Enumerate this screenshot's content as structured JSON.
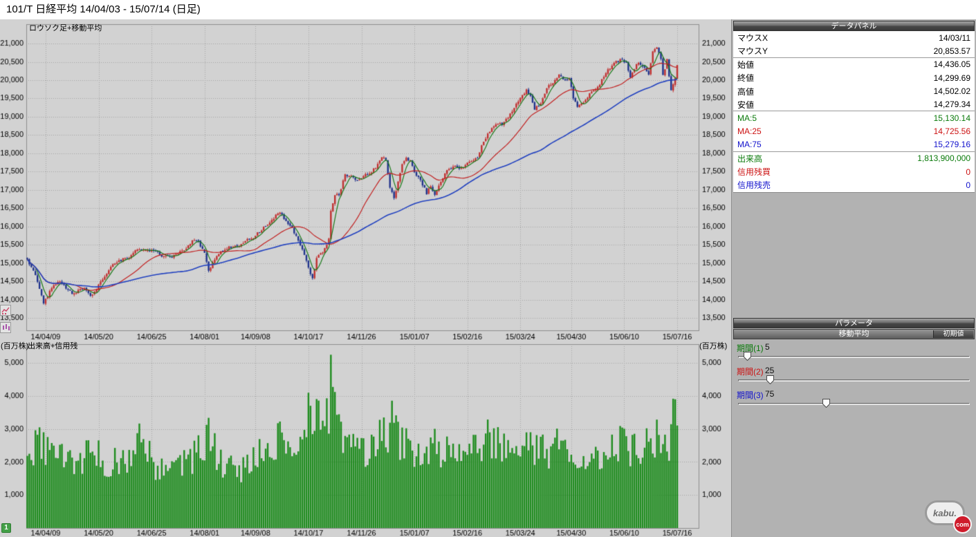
{
  "title_bar": {
    "text": "101/T 日経平均  14/04/03 - 15/07/14 (日足)"
  },
  "chart_labels": {
    "price_pane": "ロウソク足+移動平均",
    "volume_pane": "出来高+信用残",
    "volume_unit": "(百万株)"
  },
  "chart_data": {
    "type": "candlestick+volume",
    "title": "101/T 日経平均 (日足)",
    "date_range": [
      "14/04/03",
      "15/07/14"
    ],
    "x_tick_labels": [
      "14/04/09",
      "14/05/20",
      "14/06/25",
      "14/08/01",
      "14/09/08",
      "14/10/17",
      "14/11/26",
      "15/01/07",
      "15/02/16",
      "15/03/24",
      "15/04/30",
      "15/06/10",
      "15/07/16"
    ],
    "price_axis": {
      "min": 13500,
      "max": 21000,
      "step": 500
    },
    "volume_axis": {
      "min": 0,
      "max": 5000,
      "step": 1000,
      "unit": "百万株"
    },
    "days": 320,
    "close_anchors": [
      [
        0,
        15080
      ],
      [
        2,
        14870
      ],
      [
        4,
        14670
      ],
      [
        6,
        14310
      ],
      [
        8,
        13920
      ],
      [
        10,
        14100
      ],
      [
        13,
        14420
      ],
      [
        16,
        14510
      ],
      [
        19,
        14330
      ],
      [
        22,
        14150
      ],
      [
        25,
        14230
      ],
      [
        28,
        14340
      ],
      [
        31,
        14090
      ],
      [
        34,
        14310
      ],
      [
        38,
        14650
      ],
      [
        42,
        14930
      ],
      [
        46,
        15080
      ],
      [
        50,
        15160
      ],
      [
        54,
        15360
      ],
      [
        58,
        15370
      ],
      [
        62,
        15330
      ],
      [
        66,
        15210
      ],
      [
        70,
        15160
      ],
      [
        74,
        15240
      ],
      [
        78,
        15420
      ],
      [
        81,
        15620
      ],
      [
        84,
        15590
      ],
      [
        87,
        15280
      ],
      [
        89,
        14790
      ],
      [
        92,
        15110
      ],
      [
        95,
        15320
      ],
      [
        99,
        15430
      ],
      [
        103,
        15460
      ],
      [
        107,
        15590
      ],
      [
        111,
        15710
      ],
      [
        115,
        15920
      ],
      [
        119,
        16080
      ],
      [
        122,
        16320
      ],
      [
        124,
        16370
      ],
      [
        127,
        16170
      ],
      [
        130,
        15960
      ],
      [
        133,
        15640
      ],
      [
        136,
        15260
      ],
      [
        138,
        14910
      ],
      [
        140,
        14550
      ],
      [
        142,
        15130
      ],
      [
        145,
        15290
      ],
      [
        147,
        15530
      ],
      [
        148,
        15660
      ],
      [
        149,
        16420
      ],
      [
        151,
        16860
      ],
      [
        153,
        16890
      ],
      [
        156,
        17390
      ],
      [
        159,
        17370
      ],
      [
        162,
        17260
      ],
      [
        165,
        17380
      ],
      [
        168,
        17460
      ],
      [
        171,
        17600
      ],
      [
        174,
        17920
      ],
      [
        176,
        17840
      ],
      [
        178,
        17100
      ],
      [
        180,
        16760
      ],
      [
        182,
        17220
      ],
      [
        184,
        17680
      ],
      [
        186,
        17850
      ],
      [
        188,
        17810
      ],
      [
        190,
        17450
      ],
      [
        193,
        17280
      ],
      [
        196,
        16900
      ],
      [
        198,
        17110
      ],
      [
        200,
        16870
      ],
      [
        203,
        17230
      ],
      [
        206,
        17510
      ],
      [
        209,
        17650
      ],
      [
        212,
        17560
      ],
      [
        215,
        17680
      ],
      [
        218,
        17790
      ],
      [
        221,
        17910
      ],
      [
        224,
        18330
      ],
      [
        227,
        18600
      ],
      [
        230,
        18820
      ],
      [
        233,
        18780
      ],
      [
        236,
        18970
      ],
      [
        239,
        19250
      ],
      [
        242,
        19480
      ],
      [
        245,
        19750
      ],
      [
        247,
        19560
      ],
      [
        249,
        19210
      ],
      [
        252,
        19350
      ],
      [
        255,
        19790
      ],
      [
        258,
        19940
      ],
      [
        261,
        20130
      ],
      [
        264,
        20020
      ],
      [
        266,
        20060
      ],
      [
        268,
        19530
      ],
      [
        270,
        19290
      ],
      [
        273,
        19380
      ],
      [
        276,
        19620
      ],
      [
        279,
        19730
      ],
      [
        282,
        20000
      ],
      [
        285,
        20260
      ],
      [
        288,
        20470
      ],
      [
        291,
        20560
      ],
      [
        294,
        20460
      ],
      [
        296,
        20050
      ],
      [
        299,
        20460
      ],
      [
        302,
        20390
      ],
      [
        305,
        20170
      ],
      [
        307,
        20810
      ],
      [
        309,
        20870
      ],
      [
        311,
        20610
      ],
      [
        312,
        20110
      ],
      [
        313,
        20330
      ],
      [
        314,
        20540
      ],
      [
        315,
        20110
      ],
      [
        316,
        19740
      ],
      [
        317,
        19860
      ],
      [
        318,
        20090
      ],
      [
        319,
        20390
      ]
    ],
    "volume_anchors": [
      [
        0,
        2150
      ],
      [
        6,
        2500
      ],
      [
        12,
        2200
      ],
      [
        20,
        1900
      ],
      [
        28,
        2100
      ],
      [
        31,
        2400
      ],
      [
        40,
        1900
      ],
      [
        50,
        2100
      ],
      [
        55,
        3100
      ],
      [
        62,
        1750
      ],
      [
        70,
        1650
      ],
      [
        78,
        1900
      ],
      [
        85,
        2300
      ],
      [
        89,
        2750
      ],
      [
        96,
        1800
      ],
      [
        104,
        1700
      ],
      [
        111,
        2050
      ],
      [
        118,
        2400
      ],
      [
        124,
        2650
      ],
      [
        130,
        2350
      ],
      [
        136,
        3000
      ],
      [
        140,
        3500
      ],
      [
        143,
        3100
      ],
      [
        146,
        2900
      ],
      [
        148,
        3400
      ],
      [
        149,
        5250
      ],
      [
        151,
        3300
      ],
      [
        154,
        2900
      ],
      [
        158,
        2400
      ],
      [
        163,
        2250
      ],
      [
        168,
        2300
      ],
      [
        174,
        2650
      ],
      [
        179,
        3050
      ],
      [
        184,
        2500
      ],
      [
        190,
        2150
      ],
      [
        196,
        2100
      ],
      [
        200,
        2400
      ],
      [
        205,
        2150
      ],
      [
        210,
        2250
      ],
      [
        215,
        2100
      ],
      [
        220,
        2300
      ],
      [
        225,
        2650
      ],
      [
        230,
        2450
      ],
      [
        236,
        2250
      ],
      [
        241,
        2450
      ],
      [
        246,
        2550
      ],
      [
        250,
        2350
      ],
      [
        255,
        2250
      ],
      [
        260,
        2450
      ],
      [
        265,
        2350
      ],
      [
        270,
        2250
      ],
      [
        275,
        2050
      ],
      [
        280,
        2150
      ],
      [
        285,
        2450
      ],
      [
        290,
        2550
      ],
      [
        295,
        2350
      ],
      [
        300,
        2250
      ],
      [
        305,
        2450
      ],
      [
        308,
        2650
      ],
      [
        311,
        2550
      ],
      [
        314,
        2350
      ],
      [
        316,
        2750
      ],
      [
        318,
        3900
      ],
      [
        319,
        3050
      ]
    ],
    "moving_averages": [
      {
        "name": "MA:5",
        "period": 5,
        "color": "#1a7a1a"
      },
      {
        "name": "MA:25",
        "period": 25,
        "color": "#c22020"
      },
      {
        "name": "MA:75",
        "period": 75,
        "color": "#2040c0"
      }
    ],
    "up_color": "#c03030",
    "down_color": "#20338c",
    "volume_color": "#1e8c1e",
    "grid": true,
    "legend_position": "none"
  },
  "data_panel": {
    "header": "データパネル",
    "rows": [
      {
        "label": "マウスX",
        "value": "14/03/11",
        "color": "#000000"
      },
      {
        "label": "マウスY",
        "value": "20,853.57",
        "color": "#000000",
        "divider": true
      },
      {
        "label": "始値",
        "value": "14,436.05",
        "color": "#000000"
      },
      {
        "label": "終値",
        "value": "14,299.69",
        "color": "#000000"
      },
      {
        "label": "高値",
        "value": "14,502.02",
        "color": "#000000"
      },
      {
        "label": "安値",
        "value": "14,279.34",
        "color": "#000000",
        "divider": true
      },
      {
        "label": "MA:5",
        "value": "15,130.14",
        "color": "#0a7a0a"
      },
      {
        "label": "MA:25",
        "value": "14,725.56",
        "color": "#cc1111"
      },
      {
        "label": "MA:75",
        "value": "15,279.16",
        "color": "#1111cc",
        "divider": true
      },
      {
        "label": "出来高",
        "value": "1,813,900,000",
        "color": "#0a7a0a"
      },
      {
        "label": "信用残買",
        "value": "0",
        "color": "#cc1111"
      },
      {
        "label": "信用残売",
        "value": "0",
        "color": "#1111cc"
      }
    ]
  },
  "parameter_panel": {
    "header": "パラメータ",
    "group_title": "移動平均",
    "reset_button": "初期値",
    "params": [
      {
        "label": "期間(1)",
        "value": 5,
        "max": 200,
        "color": "#0a7a0a"
      },
      {
        "label": "期間(2)",
        "value": 25,
        "max": 200,
        "color": "#cc1111"
      },
      {
        "label": "期間(3)",
        "value": 75,
        "max": 200,
        "color": "#1111cc"
      }
    ]
  },
  "misc": {
    "page_indicator": "1",
    "logo_text": "kabu.",
    "logo_badge": "com"
  }
}
